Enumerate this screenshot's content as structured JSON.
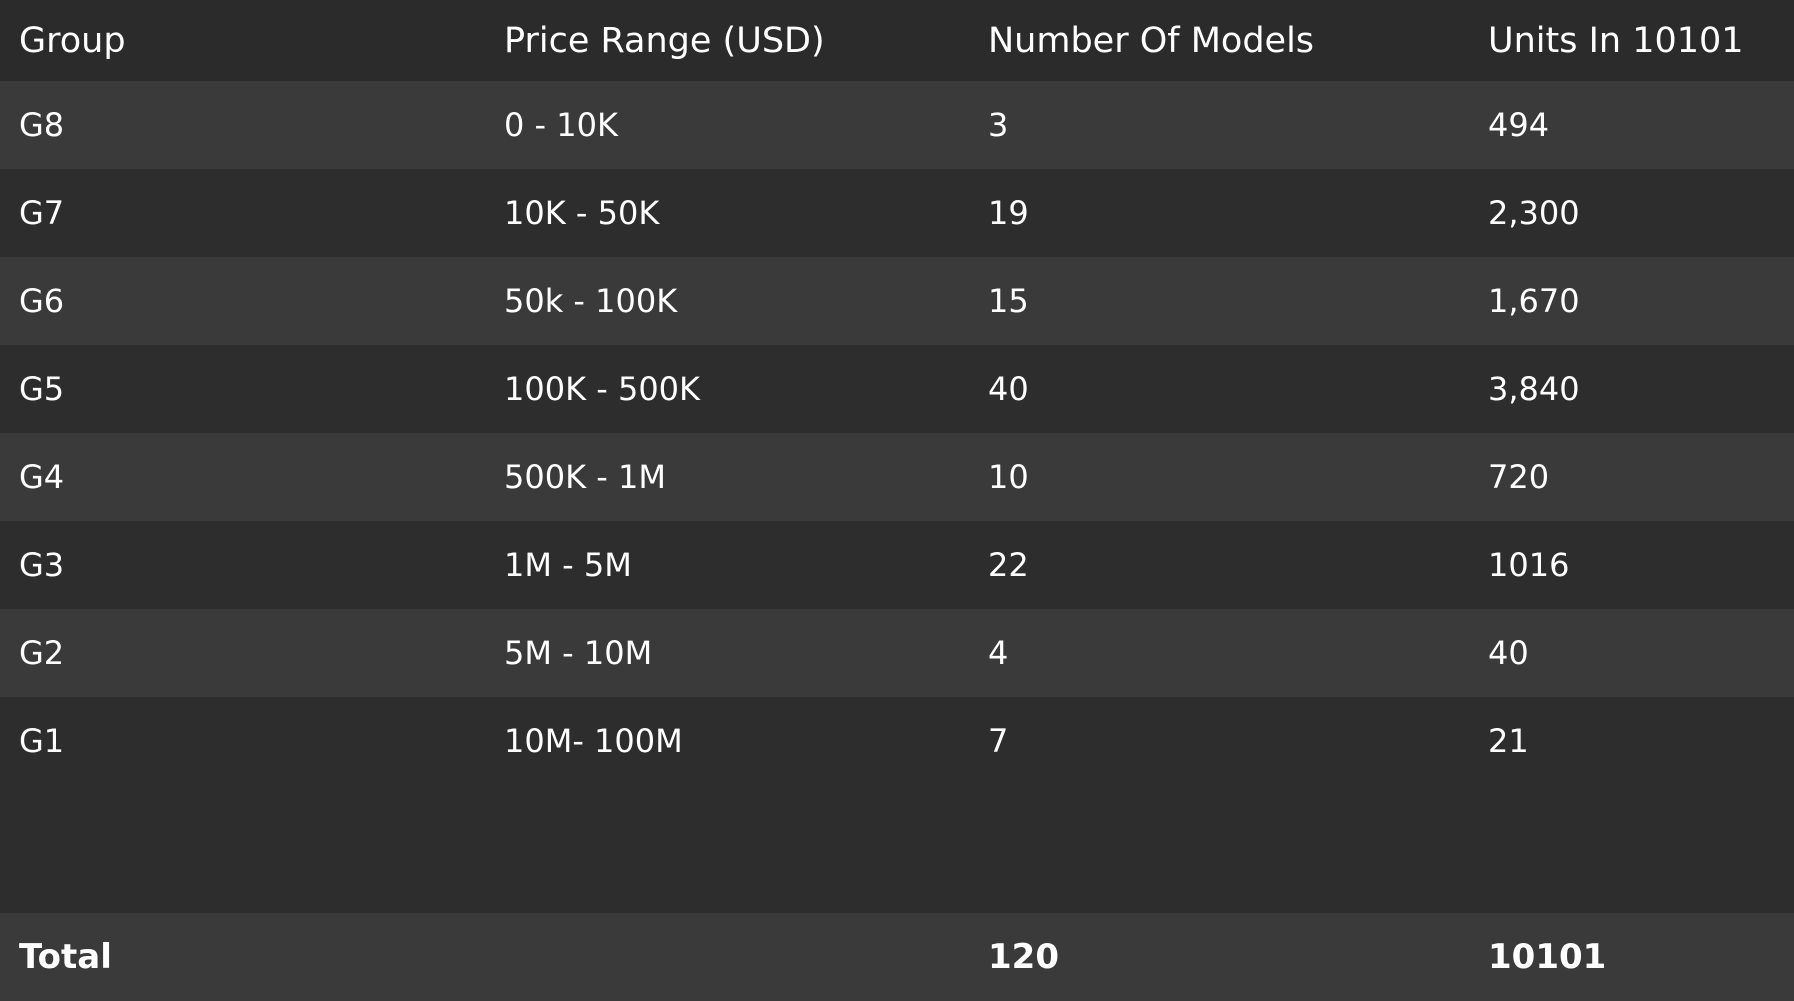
{
  "columns": [
    "Group",
    "Price Range (USD)",
    "Number Of Models",
    "Units In 10101"
  ],
  "rows": [
    {
      "group": "G8",
      "price_range": "0 - 10K",
      "models": "3",
      "units": "494"
    },
    {
      "group": "G7",
      "price_range": "10K - 50K",
      "models": "19",
      "units": "2,300"
    },
    {
      "group": "G6",
      "price_range": "50k - 100K",
      "models": "15",
      "units": "1,670"
    },
    {
      "group": "G5",
      "price_range": "100K - 500K",
      "models": "40",
      "units": "3,840"
    },
    {
      "group": "G4",
      "price_range": "500K - 1M",
      "models": "10",
      "units": "720"
    },
    {
      "group": "G3",
      "price_range": "1M - 5M",
      "models": "22",
      "units": "1016"
    },
    {
      "group": "G2",
      "price_range": "5M - 10M",
      "models": "4",
      "units": "40"
    },
    {
      "group": "G1",
      "price_range": "10M- 100M",
      "models": "7",
      "units": "21"
    }
  ],
  "total": {
    "label": "Total",
    "price_range": "",
    "models": "120",
    "units": "10101"
  },
  "colors": {
    "background": "#2b2b2b",
    "row_light": "#3a3a3a",
    "row_dark": "#2d2d2d",
    "text": "#ffffff"
  }
}
